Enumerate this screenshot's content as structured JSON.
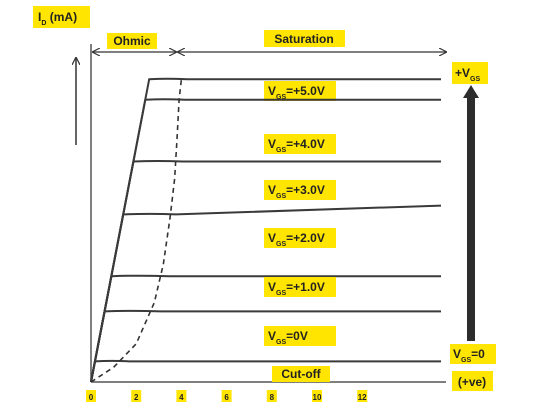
{
  "chart_data": {
    "type": "line",
    "title": "",
    "ylabel": "I_D (mA)",
    "ylabel_main": "I",
    "ylabel_sub": "D",
    "ylabel_rest": " (mA)",
    "xlabel": "",
    "x_ticks": [
      "0",
      "2",
      "4",
      "6",
      "8",
      "10",
      "12"
    ],
    "x_tick_values": [
      0,
      2,
      4,
      6,
      8,
      10,
      12
    ],
    "xlim": [
      0,
      16
    ],
    "ylim": [
      0,
      11
    ],
    "regions": {
      "ohmic": "Ohmic",
      "saturation": "Saturation",
      "cutoff": "Cut-off"
    },
    "arrow_top": {
      "main": "+V",
      "sub": "GS"
    },
    "arrow_bottom": {
      "main": "V",
      "sub": "GS",
      "rest": "=0"
    },
    "arrow_note": "(+ve)",
    "highlight_color": "#ffe500",
    "line_color": "#3a3a3a",
    "pinchoff_boundary": {
      "style": "dashed",
      "x": [
        0,
        1,
        2,
        2.8,
        3.2,
        3.5,
        3.7,
        3.8,
        3.9,
        4.0
      ],
      "y": [
        0,
        0.5,
        1.3,
        2.7,
        4,
        5.6,
        6.9,
        8.2,
        9.6,
        10.3
      ]
    },
    "series": [
      {
        "label_main": "V",
        "label_sub": "GS",
        "label_rest": "=+5.0V",
        "saturation": 10.3,
        "x_knee": 4.0,
        "end_value": 10.3
      },
      {
        "label_main": "V",
        "label_sub": "GS",
        "label_rest": "=+4.0V",
        "saturation": 9.6,
        "x_knee": 3.9,
        "end_value": 9.6
      },
      {
        "label_main": "V",
        "label_sub": "GS",
        "label_rest": "=+3.0V",
        "saturation": 7.5,
        "x_knee": 3.8,
        "end_value": 7.5
      },
      {
        "label_main": "V",
        "label_sub": "GS",
        "label_rest": "=+2.0V",
        "saturation": 5.7,
        "x_knee": 3.5,
        "end_value": 6.0
      },
      {
        "label_main": "V",
        "label_sub": "GS",
        "label_rest": "=+1.0V",
        "saturation": 3.6,
        "x_knee": 3.2,
        "end_value": 3.6
      },
      {
        "label_main": "V",
        "label_sub": "GS",
        "label_rest": "=0V",
        "saturation": 2.4,
        "x_knee": 2.8,
        "end_value": 2.4
      },
      {
        "label_main": "",
        "label_sub": "",
        "label_rest": "",
        "saturation": 0.7,
        "x_knee": 1.5,
        "end_value": 0.7
      }
    ],
    "grid": false,
    "legend": "none"
  }
}
